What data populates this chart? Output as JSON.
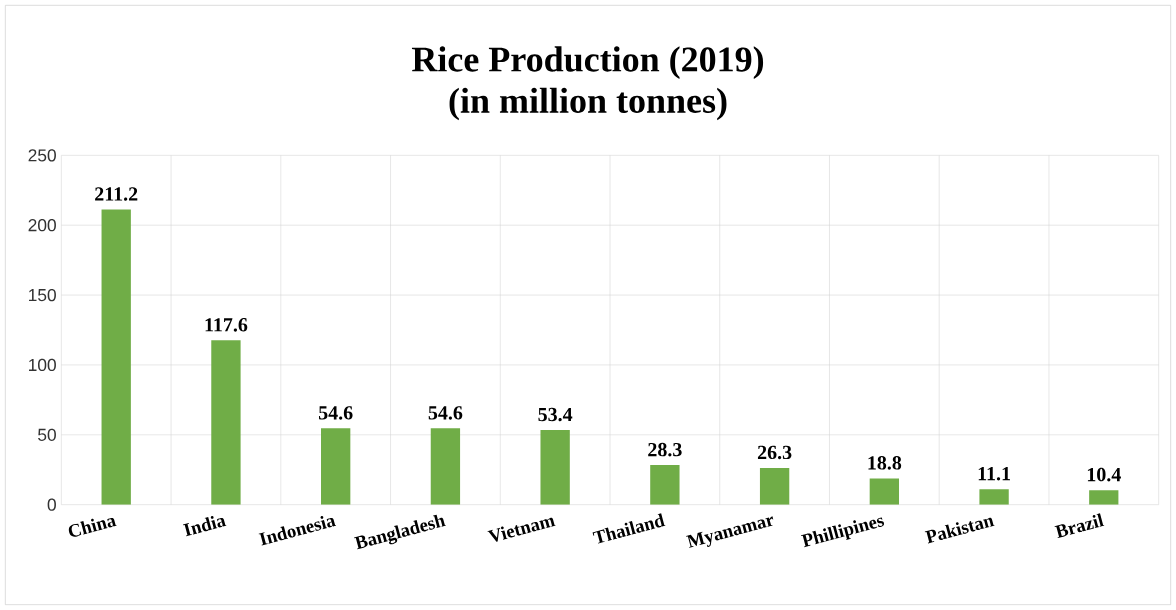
{
  "chart_data": {
    "type": "bar",
    "title": "Rice Production (2019)",
    "subtitle": "(in million tonnes)",
    "categories": [
      "China",
      "India",
      "Indonesia",
      "Bangladesh",
      "Vietnam",
      "Thailand",
      "Myanamar",
      "Phillipines",
      "Pakistan",
      "Brazil"
    ],
    "values": [
      211.2,
      117.6,
      54.6,
      54.6,
      53.4,
      28.3,
      26.3,
      18.8,
      11.1,
      10.4
    ],
    "color": "#70ad47",
    "ylim": [
      0,
      250
    ],
    "yticks": [
      0,
      50,
      100,
      150,
      200,
      250
    ],
    "grid": true,
    "data_labels": true
  }
}
